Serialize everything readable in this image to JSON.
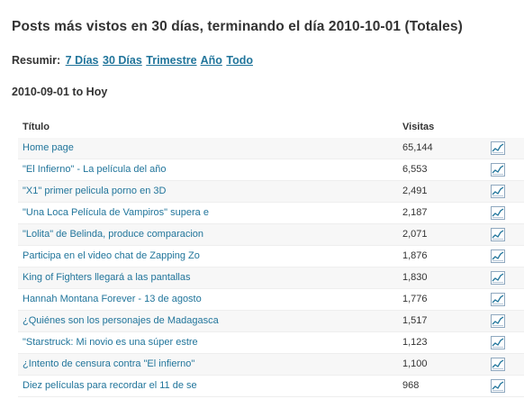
{
  "header": {
    "title": "Posts más vistos en 30 días, terminando el día 2010-10-01 (Totales)"
  },
  "summary": {
    "label": "Resumir:",
    "links": [
      "7 Días",
      "30 Días",
      "Trimestre",
      "Año",
      "Todo"
    ]
  },
  "range": {
    "text": "2010-09-01 to Hoy"
  },
  "table": {
    "col_title": "Título",
    "col_views": "Visitas",
    "rows": [
      {
        "title": "Home page",
        "views": "65,144"
      },
      {
        "title": "\"El Infierno\" - La película del año",
        "views": "6,553"
      },
      {
        "title": "\"X1\" primer pelicula porno en 3D",
        "views": "2,491"
      },
      {
        "title": "\"Una Loca Película de Vampiros\" supera e",
        "views": "2,187"
      },
      {
        "title": "\"Lolita\" de Belinda, produce comparacion",
        "views": "2,071"
      },
      {
        "title": "Participa en el video chat de Zapping Zo",
        "views": "1,876"
      },
      {
        "title": "King of Fighters llegará a las pantallas",
        "views": "1,830"
      },
      {
        "title": "Hannah Montana Forever - 13 de agosto",
        "views": "1,776"
      },
      {
        "title": "¿Quiénes son los personajes de Madagasca",
        "views": "1,517"
      },
      {
        "title": "\"Starstruck: Mi novio es una súper estre",
        "views": "1,123"
      },
      {
        "title": "¿Intento de censura contra \"El infierno\"",
        "views": "1,100"
      },
      {
        "title": "Diez películas para recordar el 11 de se",
        "views": "968"
      }
    ],
    "icon": "line-chart-icon"
  }
}
